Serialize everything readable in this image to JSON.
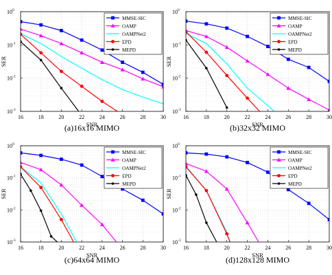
{
  "figure": {
    "series_styles": [
      {
        "color": "#0000ff",
        "marker": "square"
      },
      {
        "color": "#ff00ff",
        "marker": "triangle"
      },
      {
        "color": "#00ffff",
        "marker": "none"
      },
      {
        "color": "#ff0000",
        "marker": "circle"
      },
      {
        "color": "#000000",
        "marker": "circle-small"
      }
    ],
    "grid": true,
    "legend_placement": "top-right"
  },
  "chart_data": [
    {
      "type": "line",
      "caption": "(a)16x16 MIMO",
      "xlabel": "SNR",
      "ylabel": "SER",
      "xlim": [
        16,
        30
      ],
      "ylim": [
        0.001,
        1
      ],
      "yscale": "log",
      "xticks": [
        "16",
        "18",
        "20",
        "22",
        "24",
        "26",
        "28",
        "30"
      ],
      "yticks": [
        {
          "base": "10",
          "exp": "-3"
        },
        {
          "base": "10",
          "exp": "-2"
        },
        {
          "base": "10",
          "exp": "-1"
        },
        {
          "base": "10",
          "exp": "0"
        }
      ],
      "series": [
        {
          "name": "MMSE-SIC",
          "x": [
            16,
            18,
            20,
            22,
            24,
            26,
            28,
            30
          ],
          "y": [
            0.5,
            0.4,
            0.27,
            0.14,
            0.07,
            0.03,
            0.015,
            0.0065
          ]
        },
        {
          "name": "OAMP",
          "x": [
            16,
            18,
            20,
            22,
            24,
            26,
            28,
            30
          ],
          "y": [
            0.3,
            0.19,
            0.11,
            0.058,
            0.03,
            0.018,
            0.0095,
            0.0055
          ]
        },
        {
          "name": "OAMPNet2",
          "x": [
            16,
            18,
            20,
            22,
            24,
            26,
            28,
            30
          ],
          "y": [
            0.22,
            0.11,
            0.045,
            0.02,
            0.009,
            0.0045,
            0.0027,
            0.0017
          ]
        },
        {
          "name": "EPD",
          "x": [
            16,
            18,
            20,
            22,
            24,
            25.5
          ],
          "y": [
            0.21,
            0.058,
            0.016,
            0.0057,
            0.002,
            0.001
          ]
        },
        {
          "name": "MEPD",
          "x": [
            16,
            18,
            20,
            21.7
          ],
          "y": [
            0.125,
            0.035,
            0.005,
            0.001
          ]
        }
      ]
    },
    {
      "type": "line",
      "caption": "(b)32x32 MIMO",
      "xlabel": "SNR",
      "ylabel": "SER",
      "xlim": [
        16,
        30
      ],
      "ylim": [
        0.001,
        1
      ],
      "yscale": "log",
      "xticks": [
        "16",
        "18",
        "20",
        "22",
        "24",
        "26",
        "28",
        "30"
      ],
      "yticks": [
        {
          "base": "10",
          "exp": "-3"
        },
        {
          "base": "10",
          "exp": "-2"
        },
        {
          "base": "10",
          "exp": "-1"
        },
        {
          "base": "10",
          "exp": "0"
        }
      ],
      "series": [
        {
          "name": "MMSE-SIC",
          "x": [
            16,
            18,
            20,
            22,
            24,
            26,
            28,
            30
          ],
          "y": [
            0.52,
            0.43,
            0.32,
            0.18,
            0.09,
            0.037,
            0.021,
            0.008
          ]
        },
        {
          "name": "OAMP",
          "x": [
            16,
            18,
            20,
            22,
            24,
            26,
            28,
            30
          ],
          "y": [
            0.27,
            0.18,
            0.085,
            0.033,
            0.013,
            0.005,
            0.0023,
            0.0011
          ]
        },
        {
          "name": "OAMPNet2",
          "x": [
            16,
            18,
            20,
            22,
            24,
            24.6
          ],
          "y": [
            0.22,
            0.11,
            0.027,
            0.005,
            0.0015,
            0.001
          ]
        },
        {
          "name": "EPD",
          "x": [
            16,
            18,
            20,
            22,
            23.2
          ],
          "y": [
            0.25,
            0.06,
            0.012,
            0.0025,
            0.001
          ]
        },
        {
          "name": "MEPD",
          "x": [
            16,
            18,
            20
          ],
          "y": [
            0.14,
            0.02,
            0.0013
          ]
        }
      ]
    },
    {
      "type": "line",
      "caption": "(c)64x64 MIMO",
      "xlabel": "SNR",
      "ylabel": "SER",
      "xlim": [
        16,
        30
      ],
      "ylim": [
        0.001,
        1
      ],
      "yscale": "log",
      "xticks": [
        "16",
        "18",
        "20",
        "22",
        "24",
        "26",
        "28",
        "30"
      ],
      "yticks": [
        {
          "base": "10",
          "exp": "-3"
        },
        {
          "base": "10",
          "exp": "-2"
        },
        {
          "base": "10",
          "exp": "-1"
        },
        {
          "base": "10",
          "exp": "0"
        }
      ],
      "series": [
        {
          "name": "MMSE-SIC",
          "x": [
            16,
            18,
            20,
            22,
            24,
            26,
            28,
            30
          ],
          "y": [
            0.6,
            0.5,
            0.38,
            0.25,
            0.11,
            0.045,
            0.02,
            0.0075
          ]
        },
        {
          "name": "OAMP",
          "x": [
            16,
            18,
            20,
            22,
            24,
            25.4
          ],
          "y": [
            0.3,
            0.18,
            0.06,
            0.014,
            0.0035,
            0.001
          ]
        },
        {
          "name": "OAMPNet2",
          "x": [
            16,
            18,
            20,
            21.5
          ],
          "y": [
            0.22,
            0.07,
            0.0075,
            0.001
          ]
        },
        {
          "name": "EPD",
          "x": [
            16,
            18,
            20,
            21.2
          ],
          "y": [
            0.22,
            0.05,
            0.005,
            0.001
          ]
        },
        {
          "name": "MEPD",
          "x": [
            16,
            17,
            18,
            19,
            19.6
          ],
          "y": [
            0.13,
            0.04,
            0.0095,
            0.0015,
            0.001
          ]
        }
      ]
    },
    {
      "type": "line",
      "caption": "(d)128x128 MIMO",
      "xlabel": "SNR",
      "ylabel": "SER",
      "xlim": [
        16,
        30
      ],
      "ylim": [
        0.001,
        1
      ],
      "yscale": "log",
      "xticks": [
        "16",
        "18",
        "20",
        "22",
        "24",
        "26",
        "28",
        "30"
      ],
      "yticks": [
        {
          "base": "10",
          "exp": "-3"
        },
        {
          "base": "10",
          "exp": "-2"
        },
        {
          "base": "10",
          "exp": "-1"
        },
        {
          "base": "10",
          "exp": "0"
        }
      ],
      "series": [
        {
          "name": "MMSE-SIC",
          "x": [
            16,
            18,
            20,
            22,
            24,
            26,
            28,
            30
          ],
          "y": [
            0.6,
            0.55,
            0.45,
            0.3,
            0.15,
            0.043,
            0.016,
            0.005
          ]
        },
        {
          "name": "OAMP",
          "x": [
            16,
            18,
            20,
            22,
            23.1
          ],
          "y": [
            0.28,
            0.16,
            0.045,
            0.004,
            0.001
          ]
        },
        {
          "name": "OAMPNet2",
          "x": [
            16,
            18,
            20,
            20.3
          ],
          "y": [
            0.23,
            0.04,
            0.002,
            0.001
          ]
        },
        {
          "name": "EPD",
          "x": [
            16,
            18,
            20,
            20.3
          ],
          "y": [
            0.22,
            0.04,
            0.0018,
            0.001
          ]
        },
        {
          "name": "MEPD",
          "x": [
            16,
            17,
            18,
            19
          ],
          "y": [
            0.12,
            0.03,
            0.004,
            0.001
          ]
        }
      ]
    }
  ]
}
